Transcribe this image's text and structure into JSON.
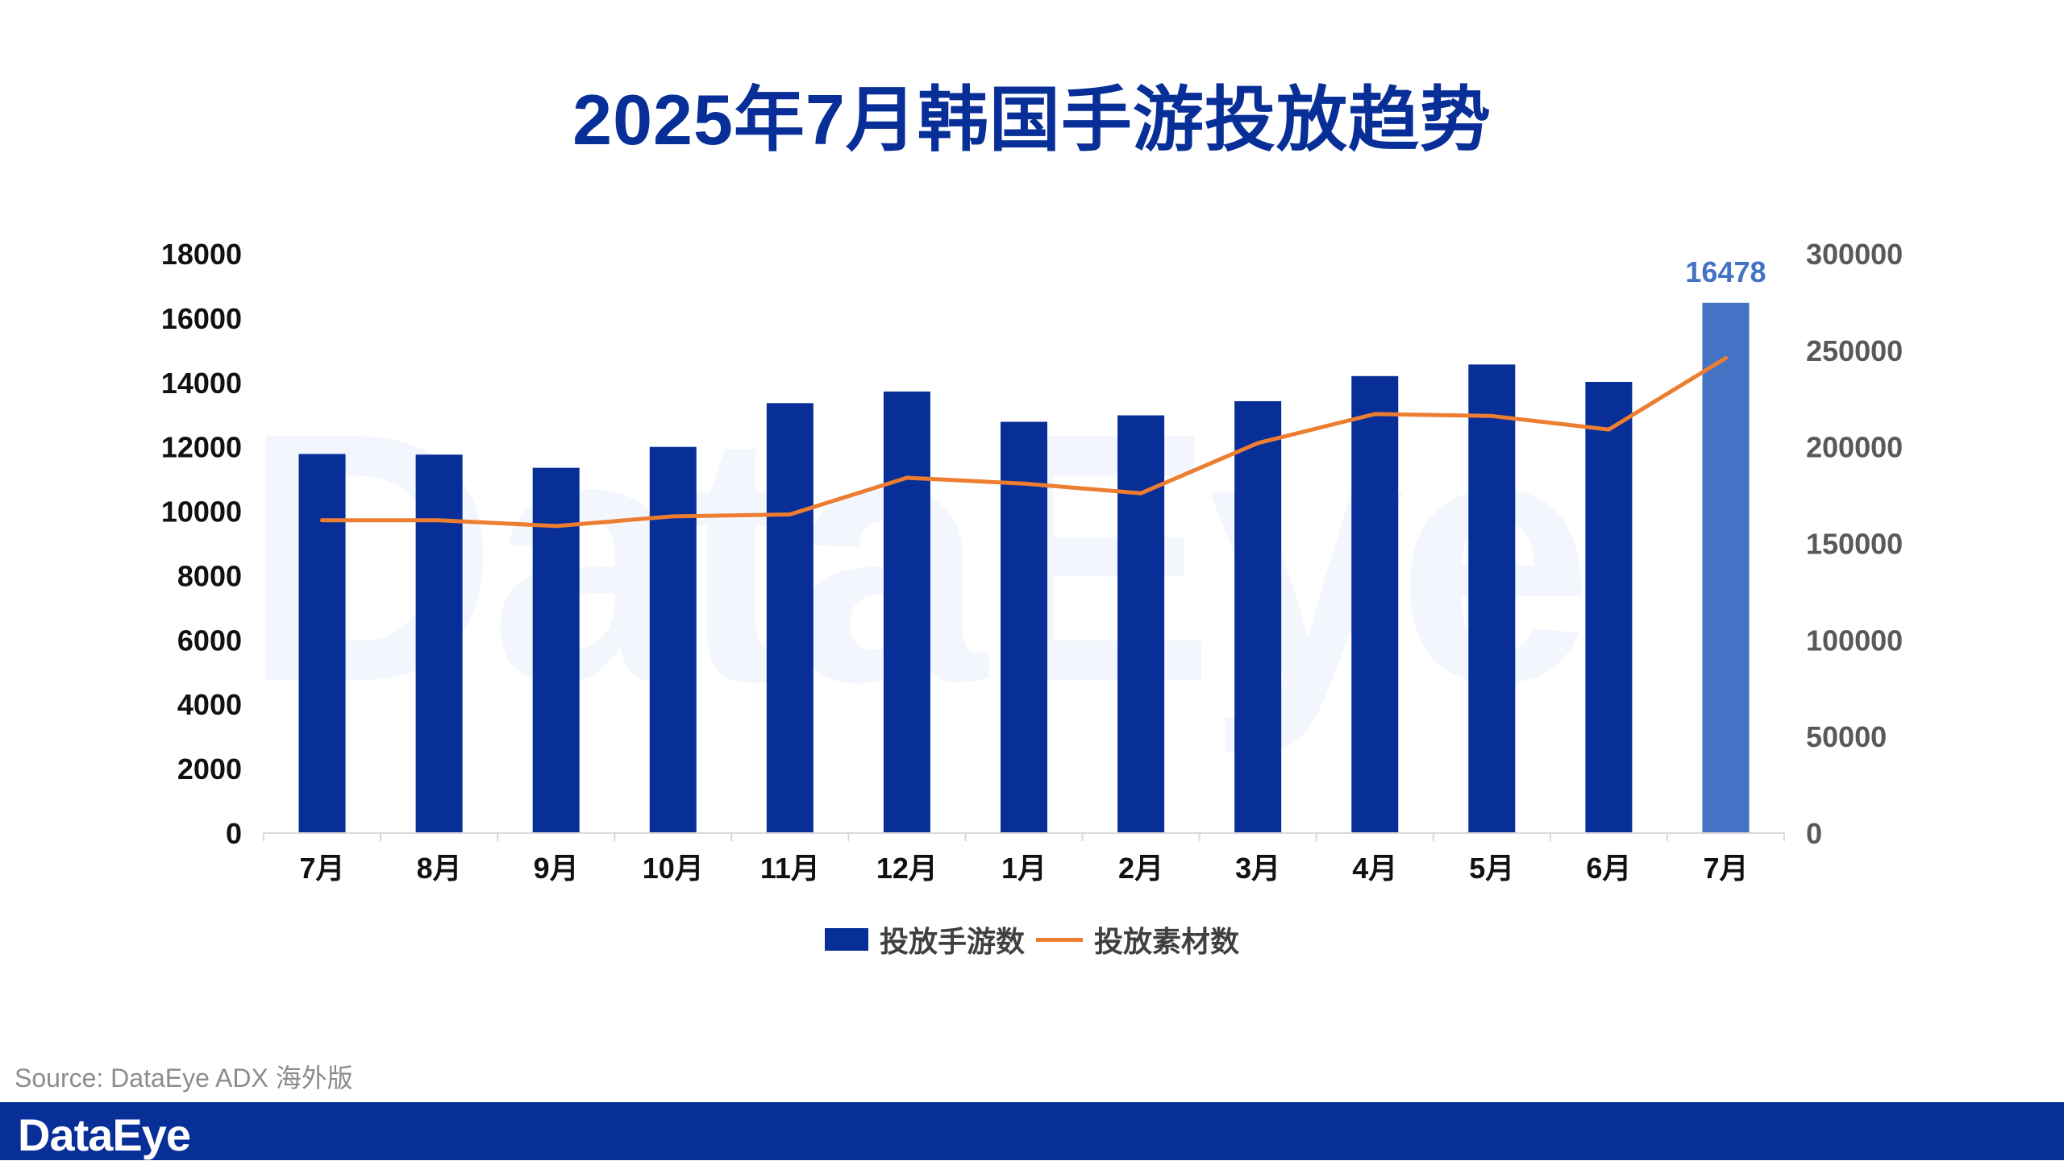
{
  "title": "2025年7月韩国手游投放趋势",
  "watermark": "DataEye",
  "source": "Source: DataEye ADX 海外版",
  "footer": {
    "logo": "DataEye"
  },
  "colors": {
    "bar": "#082e97",
    "bar_highlight": "#4472c4",
    "line": "#ed7d31",
    "title": "#082e97"
  },
  "chart_data": {
    "type": "bar+line",
    "categories": [
      "7月",
      "8月",
      "9月",
      "10月",
      "11月",
      "12月",
      "1月",
      "2月",
      "3月",
      "4月",
      "5月",
      "6月",
      "7月"
    ],
    "series": [
      {
        "name": "投放手游数",
        "type": "bar",
        "axis": "left",
        "values": [
          11780,
          11760,
          11350,
          12000,
          13360,
          13720,
          12780,
          12980,
          13420,
          14200,
          14560,
          14020,
          16478
        ]
      },
      {
        "name": "投放素材数",
        "type": "line",
        "axis": "right",
        "values": [
          162000,
          162000,
          159000,
          164000,
          165000,
          184000,
          181000,
          176000,
          202000,
          217000,
          216000,
          209000,
          246000
        ]
      }
    ],
    "highlight_index": 12,
    "data_labels": [
      {
        "index": 12,
        "text": "16478"
      }
    ],
    "y_left": {
      "min": 0,
      "max": 18000,
      "ticks": [
        "0",
        "2000",
        "4000",
        "6000",
        "8000",
        "10000",
        "12000",
        "14000",
        "16000",
        "18000"
      ]
    },
    "y_right": {
      "min": 0,
      "max": 300000,
      "ticks": [
        "0",
        "50000",
        "100000",
        "150000",
        "200000",
        "250000",
        "300000"
      ]
    },
    "legend": [
      {
        "name": "投放手游数",
        "kind": "bar"
      },
      {
        "name": "投放素材数",
        "kind": "line"
      }
    ],
    "legend_position": "bottom",
    "grid": false
  }
}
